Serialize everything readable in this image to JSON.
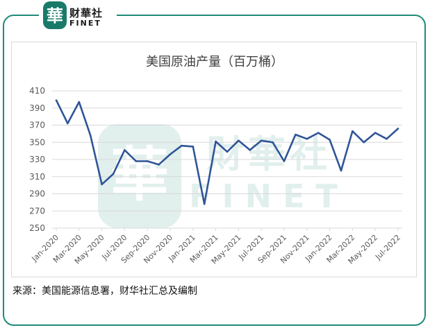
{
  "brand": {
    "name_cn": "财華社",
    "name_en": "FINET",
    "seal_char": "華",
    "watermark_cn": "財華社",
    "watermark_en": "FINET"
  },
  "source_note": "来源：美国能源信息署，财华社汇总及编制",
  "colors": {
    "line": "#2f5597",
    "frame": "#1f8a78",
    "grid": "#d9d9d9",
    "axis_text": "#595959",
    "title_text": "#404040"
  },
  "chart_data": {
    "type": "line",
    "title": "美国原油产量（百万桶）",
    "xlabel": "",
    "ylabel": "",
    "ylim": [
      250,
      410
    ],
    "yticks": [
      250,
      270,
      290,
      310,
      330,
      350,
      370,
      390,
      410
    ],
    "grid": true,
    "legend": "none",
    "x": [
      "Jan-2020",
      "Feb-2020",
      "Mar-2020",
      "Apr-2020",
      "May-2020",
      "Jun-2020",
      "Jul-2020",
      "Aug-2020",
      "Sep-2020",
      "Oct-2020",
      "Nov-2020",
      "Dec-2020",
      "Jan-2021",
      "Feb-2021",
      "Mar-2021",
      "Apr-2021",
      "May-2021",
      "Jun-2021",
      "Jul-2021",
      "Aug-2021",
      "Sep-2021",
      "Oct-2021",
      "Nov-2021",
      "Dec-2021",
      "Jan-2022",
      "Feb-2022",
      "Mar-2022",
      "Apr-2022",
      "May-2022",
      "Jun-2022",
      "Jul-2022"
    ],
    "x_tick_labels": [
      "Jan-2020",
      "Mar-2020",
      "May-2020",
      "Jul-2020",
      "Sep-2020",
      "Nov-2020",
      "Jan-2021",
      "Mar-2021",
      "May-2021",
      "Jul-2021",
      "Sep-2021",
      "Nov-2021",
      "Jan-2022",
      "Mar-2022",
      "May-2022",
      "Jul-2022"
    ],
    "series": [
      {
        "values": [
          399,
          372,
          397,
          358,
          301,
          313,
          341,
          328,
          328,
          324,
          336,
          346,
          345,
          278,
          351,
          339,
          352,
          341,
          352,
          350,
          328,
          359,
          354,
          361,
          353,
          317,
          363,
          350,
          361,
          354,
          366
        ]
      }
    ]
  }
}
